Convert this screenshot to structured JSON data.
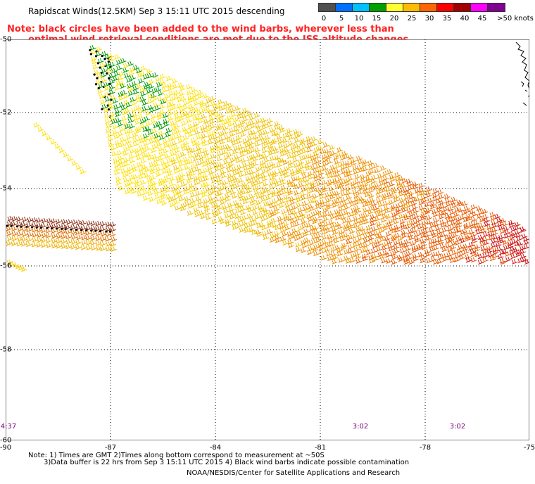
{
  "header": {
    "title": "Rapidscat Winds(12.5KM) Sep  3 15:11 UTC 2015 descending",
    "note_line1": "Note: black circles have been added to the wind barbs, wherever less than",
    "note_line2": "optimal wind retrieval conditions are met due to the ISS altitude changes."
  },
  "colorbar": {
    "unit_label": ">50 knots",
    "ticks": [
      "0",
      "5",
      "10",
      "15",
      "20",
      "25",
      "30",
      "35",
      "40",
      "45"
    ],
    "colors": [
      "#505050",
      "#0070ff",
      "#00c0ff",
      "#00a000",
      "#ffff33",
      "#ffbb00",
      "#ff6600",
      "#ff0000",
      "#a00000",
      "#ff00ff",
      "#800090"
    ]
  },
  "map": {
    "lat_labels": [
      "-50",
      "-52",
      "-54",
      "-56",
      "-58",
      "-60"
    ],
    "lon_labels": [
      "-90",
      "-87",
      "-84",
      "-81",
      "-78",
      "-75"
    ],
    "time_labels": [
      "4:37",
      "3:02",
      "3:02"
    ],
    "colors": {
      "grid": "#000000",
      "coast": "#000000",
      "time": "#7a007a"
    }
  },
  "footer": {
    "line1": "Note: 1) Times are GMT 2)Times along bottom correspond to measurement at ~50S",
    "line2": "3)Data buffer is 22 hrs from Sep  3 15:11 UTC 2015 4) Black wind barbs indicate possible contamination",
    "credit": "NOAA/NESDIS/Center for Satellite Applications and Research"
  }
}
